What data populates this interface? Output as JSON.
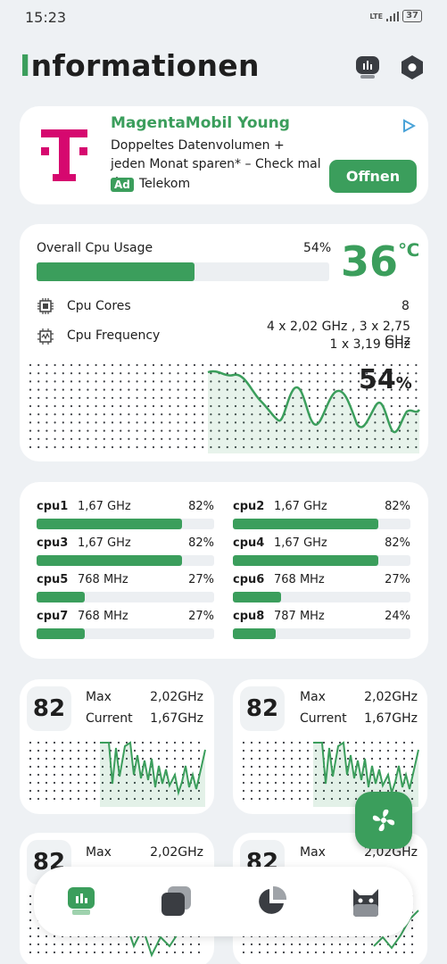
{
  "status": {
    "time": "15:23",
    "network": "LTE",
    "battery": "37"
  },
  "header": {
    "title_first": "I",
    "title_rest": "nformationen"
  },
  "ad": {
    "brand_logo": "T",
    "title": "MagentaMobil Young",
    "text": "Doppeltes Datenvolumen + jeden Monat sparen* – Check mal d…",
    "badge": "Ad",
    "advertiser": "Telekom",
    "button": "Offnen"
  },
  "cpu": {
    "overall_label": "Overall Cpu Usage",
    "overall_pct": "54%",
    "overall_value": 0.54,
    "temp_value": "36",
    "temp_unit": "℃",
    "cores_label": "Cpu Cores",
    "cores_value": "8",
    "freq_label": "Cpu Frequency",
    "freq_line1": "4 x 2,02 GHz , 3 x 2,75 GHz",
    "freq_line2": "1 x 3,19 GHz",
    "graph_pct_num": "54",
    "graph_pct_unit": "%"
  },
  "cores": [
    {
      "name": "cpu1",
      "freq": "1,67 GHz",
      "pct": "82%",
      "value": 0.82
    },
    {
      "name": "cpu2",
      "freq": "1,67 GHz",
      "pct": "82%",
      "value": 0.82
    },
    {
      "name": "cpu3",
      "freq": "1,67 GHz",
      "pct": "82%",
      "value": 0.82
    },
    {
      "name": "cpu4",
      "freq": "1,67 GHz",
      "pct": "82%",
      "value": 0.82
    },
    {
      "name": "cpu5",
      "freq": "768 MHz",
      "pct": "27%",
      "value": 0.27
    },
    {
      "name": "cpu6",
      "freq": "768 MHz",
      "pct": "27%",
      "value": 0.27
    },
    {
      "name": "cpu7",
      "freq": "768 MHz",
      "pct": "27%",
      "value": 0.27
    },
    {
      "name": "cpu8",
      "freq": "787 MHz",
      "pct": "24%",
      "value": 0.24
    }
  ],
  "tiles": [
    {
      "num": "82",
      "max_label": "Max",
      "max_value": "2,02GHz",
      "cur_label": "Current",
      "cur_value": "1,67GHz"
    },
    {
      "num": "82",
      "max_label": "Max",
      "max_value": "2,02GHz",
      "cur_label": "Current",
      "cur_value": "1,67GHz"
    },
    {
      "num": "82",
      "max_label": "Max",
      "max_value": "2,02GHz"
    },
    {
      "num": "82",
      "max_label": "Max",
      "max_value": "2,02GHz"
    }
  ],
  "icons": {
    "header_left": "monitor-chart-icon",
    "header_right": "settings-hexagon-icon",
    "fab": "fan-icon",
    "nav": [
      "monitor-chart-icon",
      "layers-icon",
      "pie-chart-icon",
      "android-icon"
    ]
  },
  "colors": {
    "accent": "#3b9e5c",
    "magenta": "#d6086f",
    "background": "#eef1f4"
  }
}
